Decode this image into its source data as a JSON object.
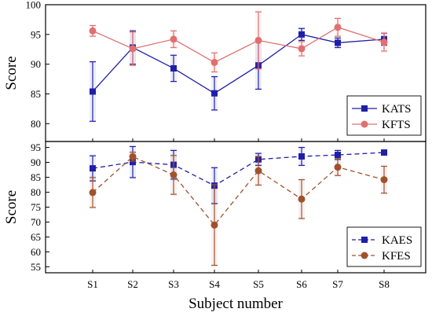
{
  "chart_data": [
    {
      "type": "line",
      "ylabel": "Score",
      "ylim": [
        77,
        100
      ],
      "yticks": [
        80,
        85,
        90,
        95,
        100
      ],
      "categories": [
        "S1",
        "S2",
        "S3",
        "S4",
        "S5",
        "S6",
        "S7",
        "S8"
      ],
      "legend_position": "bottom-right",
      "series": [
        {
          "name": "KATS",
          "color": "#1f1fa8",
          "marker": "square",
          "line_style": "solid",
          "values": [
            85.4,
            92.8,
            89.3,
            85.1,
            89.8,
            95.0,
            93.6,
            94.2
          ],
          "errors": [
            5.0,
            2.8,
            2.2,
            2.8,
            4.0,
            1.0,
            0.8,
            1.0
          ]
        },
        {
          "name": "KFTS",
          "color": "#e07070",
          "marker": "circle",
          "line_style": "solid",
          "values": [
            95.6,
            92.6,
            94.2,
            90.3,
            94.0,
            92.6,
            96.2,
            93.7
          ],
          "errors": [
            0.9,
            2.8,
            1.4,
            1.6,
            4.8,
            1.2,
            1.5,
            1.5
          ]
        }
      ]
    },
    {
      "type": "line",
      "ylabel": "Score",
      "xlabel": "Subject number",
      "ylim": [
        53,
        97
      ],
      "yticks": [
        55,
        60,
        65,
        70,
        75,
        80,
        85,
        90,
        95
      ],
      "categories": [
        "S1",
        "S2",
        "S3",
        "S4",
        "S5",
        "S6",
        "S7",
        "S8"
      ],
      "legend_position": "bottom-right",
      "series": [
        {
          "name": "KAES",
          "color": "#1f1fa8",
          "marker": "square",
          "line_style": "dashed",
          "values": [
            88.0,
            90.1,
            89.2,
            82.2,
            91.0,
            92.0,
            92.5,
            93.3
          ],
          "errors": [
            4.2,
            5.2,
            4.8,
            6.0,
            2.0,
            3.0,
            1.5,
            0.5
          ]
        },
        {
          "name": "KFES",
          "color": "#a0522d",
          "marker": "circle",
          "line_style": "dashed",
          "values": [
            79.9,
            91.9,
            85.8,
            69.0,
            87.2,
            77.7,
            88.4,
            84.2
          ],
          "errors": [
            5.0,
            1.5,
            6.5,
            13.5,
            4.8,
            6.5,
            2.8,
            4.5
          ]
        }
      ]
    }
  ]
}
